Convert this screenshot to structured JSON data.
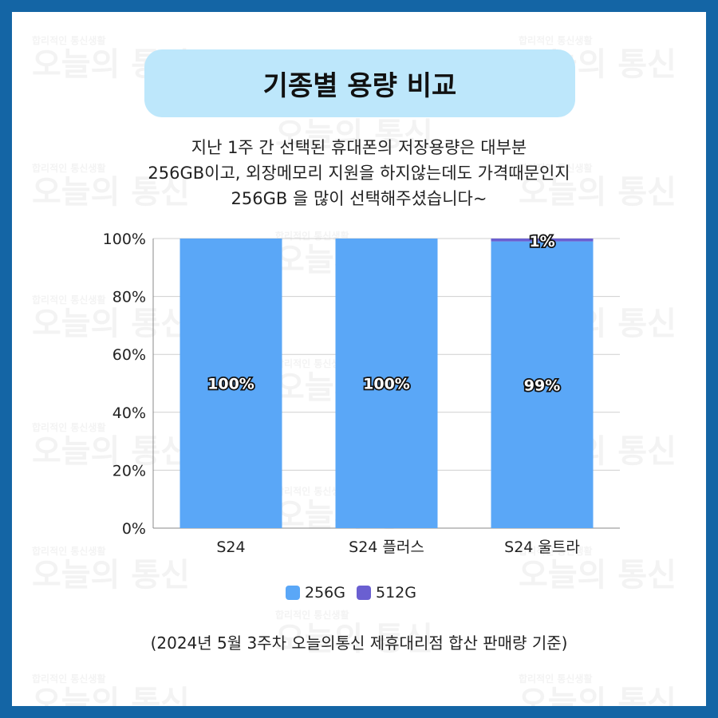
{
  "title": "기종별 용량 비교",
  "description": [
    "지난 1주 간 선택된 휴대폰의 저장용량은 대부분",
    "256GB이고, 외장메모리 지원을 하지않는데도 가격때문인지",
    "256GB 을 많이 선택해주셨습니다~"
  ],
  "watermark": {
    "small": "합리적인 통신생활",
    "big": "오늘의 통신"
  },
  "footer": "(2024년 5월 3주차 오늘의통신 제휴대리점 합산 판매량 기준)",
  "colors": {
    "frame": "#1465a5",
    "title_bg": "#bde7fb"
  },
  "chart_data": {
    "type": "bar",
    "stacked": true,
    "categories": [
      "S24",
      "S24 플러스",
      "S24 울트라"
    ],
    "series": [
      {
        "name": "256G",
        "values": [
          100,
          100,
          99
        ],
        "color": "#5aa7f7"
      },
      {
        "name": "512G",
        "values": [
          0,
          0,
          1
        ],
        "color": "#6a5fd1"
      }
    ],
    "data_labels": [
      {
        "series": 0,
        "category": 0,
        "text": "100%"
      },
      {
        "series": 0,
        "category": 1,
        "text": "100%"
      },
      {
        "series": 0,
        "category": 2,
        "text": "99%"
      },
      {
        "series": 1,
        "category": 2,
        "text": "1%"
      }
    ],
    "yticks": [
      "0%",
      "20%",
      "40%",
      "60%",
      "80%",
      "100%"
    ],
    "ylim": [
      0,
      100
    ],
    "grid": true,
    "legend": "bottom"
  }
}
